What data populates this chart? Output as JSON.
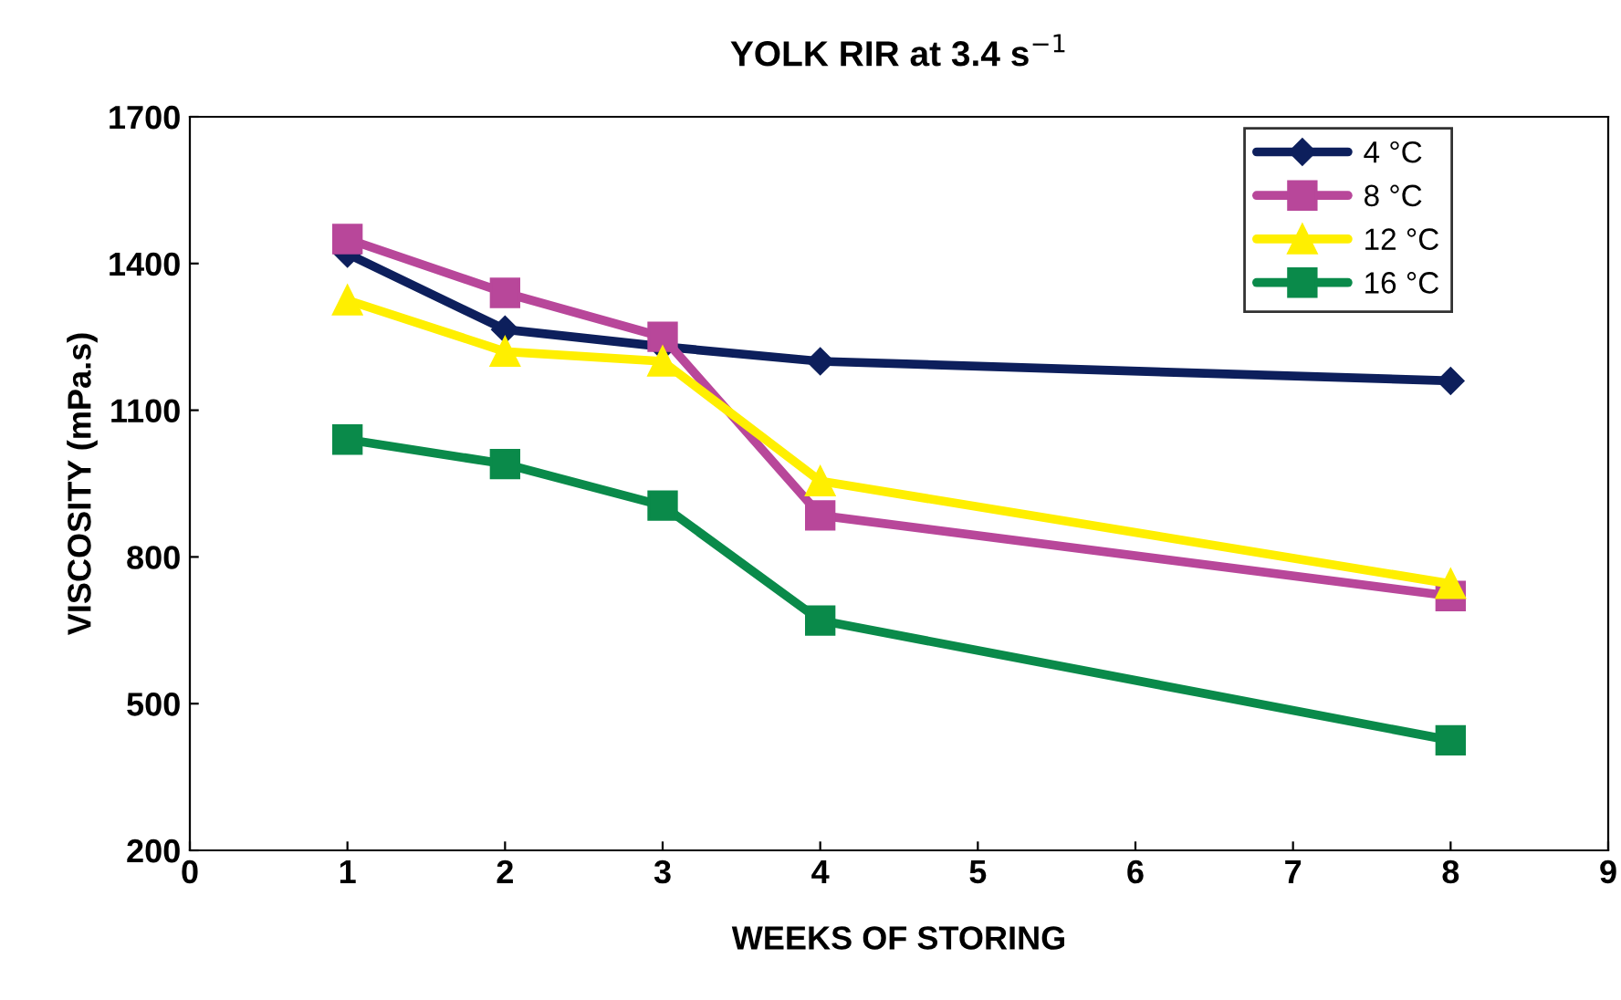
{
  "chart_data": {
    "type": "line",
    "title": "YOLK RIR at 3.4 s$^{−1}$",
    "xlabel": "WEEKS OF STORING",
    "ylabel": "VISCOSITY (mPa.s)",
    "x": [
      1,
      2,
      3,
      4,
      8
    ],
    "series": [
      {
        "name": "4 °C",
        "color": "#0d1f5c",
        "marker": "diamond",
        "values": [
          1420,
          1265,
          1230,
          1200,
          1160
        ]
      },
      {
        "name": "8 °C",
        "color": "#b8479a",
        "marker": "square",
        "values": [
          1450,
          1340,
          1250,
          885,
          720
        ]
      },
      {
        "name": "12 °C",
        "color": "#ffef00",
        "marker": "triangle",
        "values": [
          1325,
          1220,
          1200,
          955,
          745
        ]
      },
      {
        "name": "16 °C",
        "color": "#0a8a4a",
        "marker": "square",
        "values": [
          1040,
          990,
          905,
          670,
          425
        ]
      }
    ],
    "xlim": [
      0,
      9
    ],
    "xticks": [
      0,
      1,
      2,
      3,
      4,
      5,
      6,
      7,
      8,
      9
    ],
    "ylim": [
      200,
      1700
    ],
    "yticks": [
      200,
      500,
      800,
      1100,
      1400,
      1700
    ],
    "grid": false,
    "legend": "top right",
    "line_style": "solid"
  }
}
